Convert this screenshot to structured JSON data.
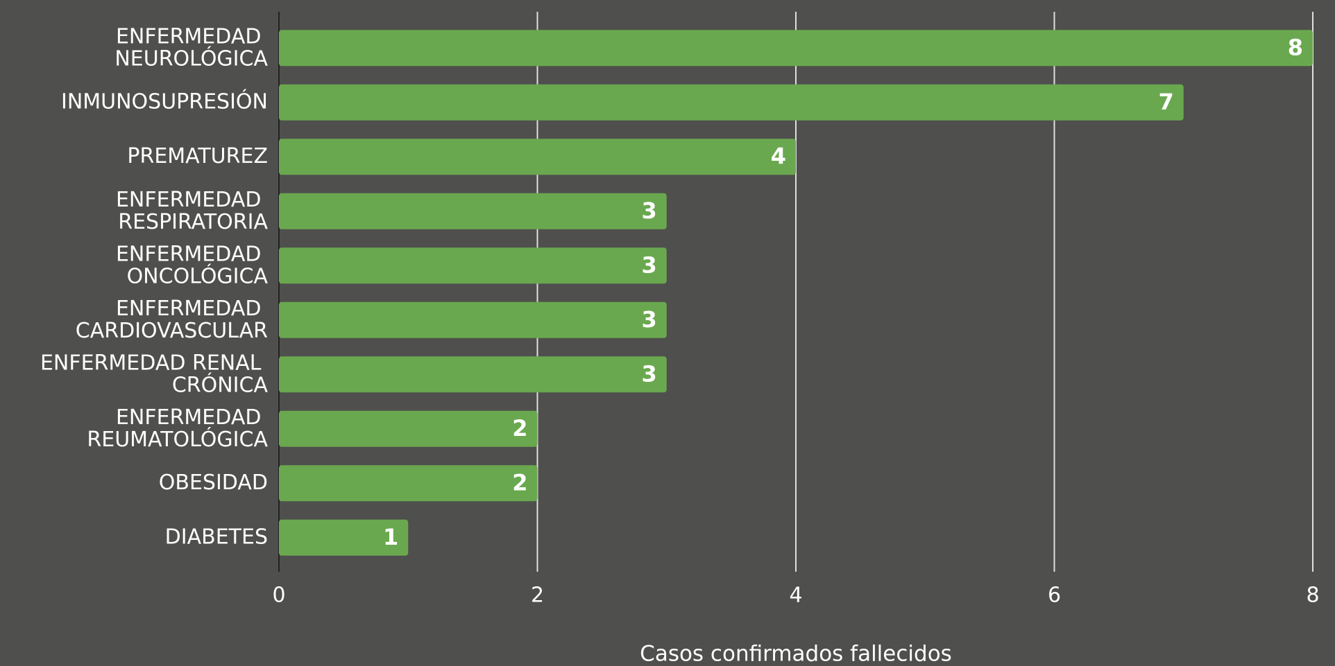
{
  "chart_data": {
    "type": "hbar",
    "categories": [
      "ENFERMEDAD NEUROLÓGICA",
      "INMUNOSUPRESIÓN",
      "PREMATUREZ",
      "ENFERMEDAD RESPIRATORIA",
      "ENFERMEDAD ONCOLÓGICA",
      "ENFERMEDAD CARDIOVASCULAR",
      "ENFERMEDAD RENAL CRÓNICA",
      "ENFERMEDAD REUMATOLÓGICA",
      "OBESIDAD",
      "DIABETES"
    ],
    "values": [
      8,
      7,
      4,
      3,
      3,
      3,
      3,
      2,
      2,
      1
    ],
    "color": "#6aa84f",
    "x_label": "Casos confirmados fallecidos",
    "xlim": [
      0,
      8
    ],
    "xticks": [
      0,
      2,
      4,
      6,
      8
    ],
    "grid": true
  }
}
